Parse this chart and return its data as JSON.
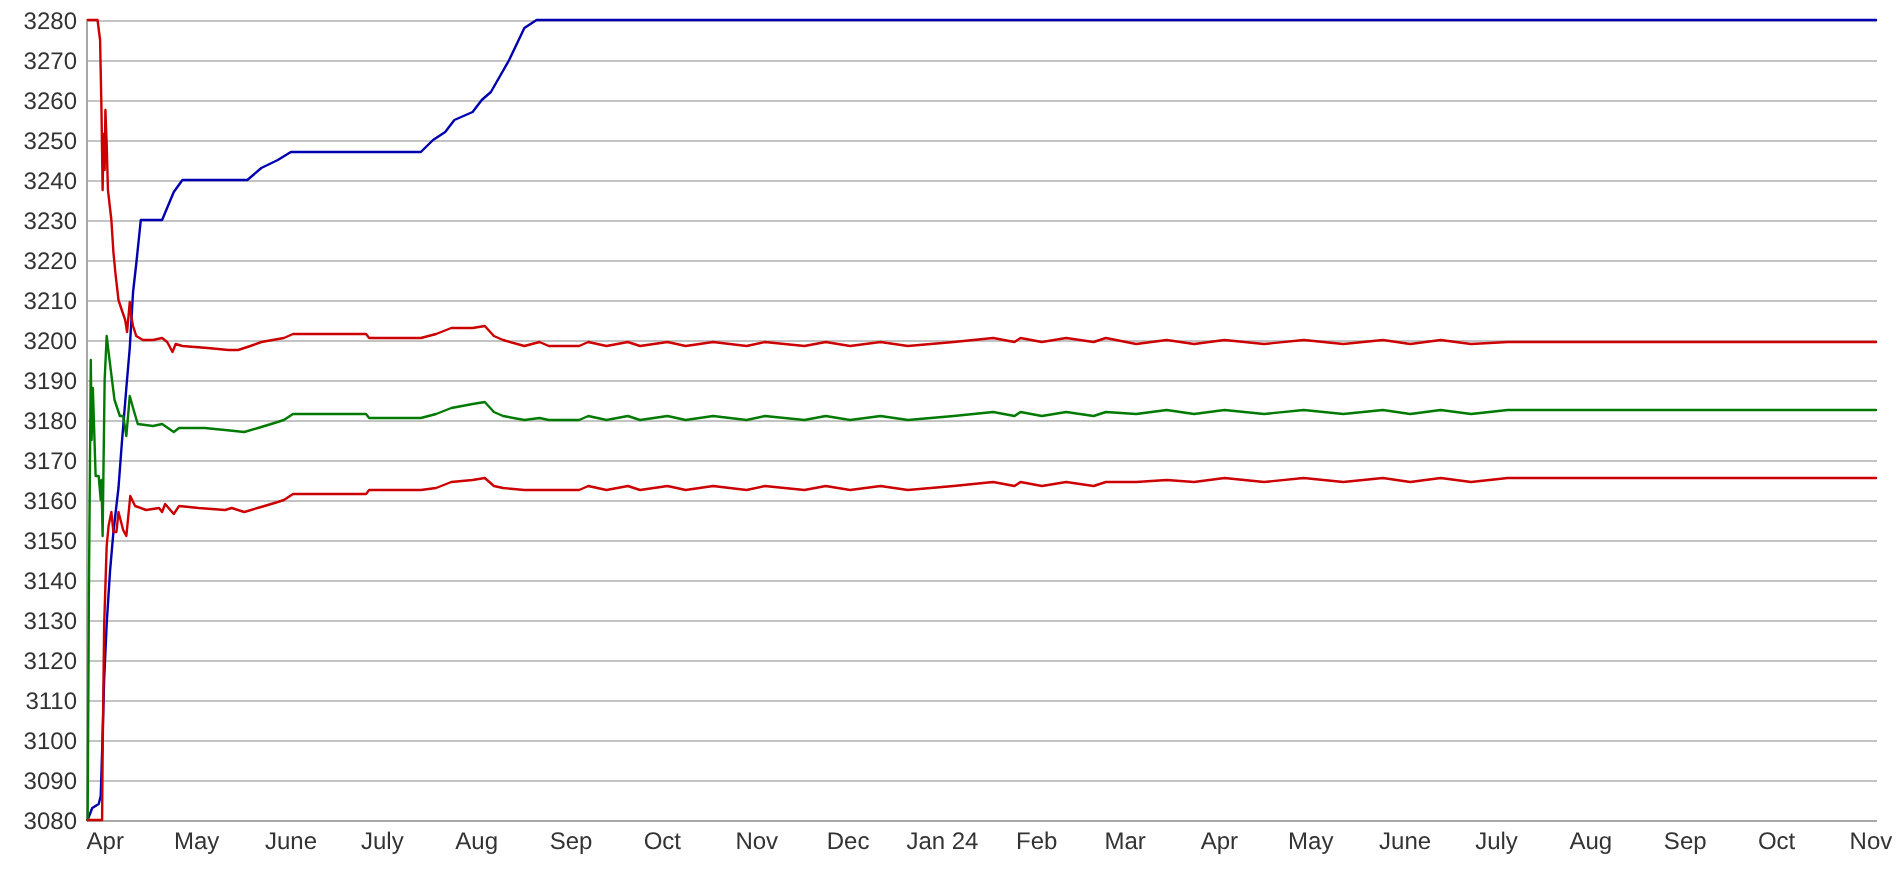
{
  "chart_data": {
    "type": "line",
    "xlim": [
      "2023-03-26",
      "2024-11-03"
    ],
    "ylim": [
      3080,
      3280
    ],
    "xticks": [
      {
        "value": "2023-04-01",
        "label": "Apr"
      },
      {
        "value": "2023-05-01",
        "label": "May"
      },
      {
        "value": "2023-06-01",
        "label": "June"
      },
      {
        "value": "2023-07-01",
        "label": "July"
      },
      {
        "value": "2023-08-01",
        "label": "Aug"
      },
      {
        "value": "2023-09-01",
        "label": "Sep"
      },
      {
        "value": "2023-10-01",
        "label": "Oct"
      },
      {
        "value": "2023-11-01",
        "label": "Nov"
      },
      {
        "value": "2023-12-01",
        "label": "Dec"
      },
      {
        "value": "2024-01-01",
        "label": "Jan 24"
      },
      {
        "value": "2024-02-01",
        "label": "Feb"
      },
      {
        "value": "2024-03-01",
        "label": "Mar"
      },
      {
        "value": "2024-04-01",
        "label": "Apr"
      },
      {
        "value": "2024-05-01",
        "label": "May"
      },
      {
        "value": "2024-06-01",
        "label": "June"
      },
      {
        "value": "2024-07-01",
        "label": "July"
      },
      {
        "value": "2024-08-01",
        "label": "Aug"
      },
      {
        "value": "2024-09-01",
        "label": "Sep"
      },
      {
        "value": "2024-10-01",
        "label": "Oct"
      },
      {
        "value": "2024-11-01",
        "label": "Nov"
      }
    ],
    "yticks": [
      3080,
      3090,
      3100,
      3110,
      3120,
      3130,
      3140,
      3150,
      3160,
      3170,
      3180,
      3190,
      3200,
      3210,
      3220,
      3230,
      3240,
      3250,
      3260,
      3270,
      3280
    ],
    "grid": "y",
    "series": [
      {
        "color": "#0000b0",
        "x": [
          "2023-03-26T13:00",
          "2023-03-28T01:00",
          "2023-03-30T04:00",
          "2023-03-30T20:00",
          "2023-03-31T07:00",
          "2023-03-31T23:00",
          "2023-04-01T19:00",
          "2023-04-02T21:00",
          "2023-04-04",
          "2023-04-05T16:00",
          "2023-04-06T18:00",
          "2023-04-08T06:00",
          "2023-04-09T09:00",
          "2023-04-10T11:00",
          "2023-04-11T12:00",
          "2023-04-13",
          "2023-04-20",
          "2023-04-23T20:00",
          "2023-04-26T16:00",
          "2023-05-18",
          "2023-05-22T14:00",
          "2023-05-28",
          "2023-06-01T07:00",
          "2023-07-14",
          "2023-07-18",
          "2023-07-22",
          "2023-07-25",
          "2023-07-31",
          "2023-08-03",
          "2023-08-06",
          "2023-08-12",
          "2023-08-17",
          "2023-08-21",
          "2024-11-03"
        ],
        "values": [
          3080,
          3083,
          3084,
          3086,
          3097,
          3115,
          3129,
          3142,
          3152,
          3163,
          3174,
          3188,
          3198,
          3212,
          3219,
          3230,
          3230,
          3237,
          3240,
          3240,
          3243,
          3245,
          3247,
          3247,
          3250,
          3252,
          3255,
          3257,
          3260,
          3262,
          3270,
          3278,
          3280,
          3280
        ]
      },
      {
        "color": "#cc0000",
        "x": [
          "2023-03-26T13:00",
          "2023-03-29T19:00",
          "2023-03-30T15:00",
          "2023-03-31T02:00",
          "2023-03-31T11:00",
          "2023-03-31T18:00",
          "2023-04-01T03:00",
          "2023-04-01T09:00",
          "2023-04-01T19:00",
          "2023-04-02T05:00",
          "2023-04-03T08:00",
          "2023-04-04",
          "2023-04-04T15:00",
          "2023-04-05T16:00",
          "2023-04-06T18:00",
          "2023-04-07T21:00",
          "2023-04-08T12:00",
          "2023-04-09T09:00",
          "2023-04-09T20:00",
          "2023-04-10T11:00",
          "2023-04-11T12:00",
          "2023-04-13T17:00",
          "2023-04-17",
          "2023-04-20",
          "2023-04-21T16:00",
          "2023-04-23T10:00",
          "2023-04-24T11:00",
          "2023-04-26T16:00",
          "2023-05-05",
          "2023-05-11T19:00",
          "2023-05-15",
          "2023-05-19",
          "2023-05-22T14:00",
          "2023-05-30",
          "2023-06-02",
          "2023-06-26",
          "2023-06-27",
          "2023-07-14",
          "2023-07-19",
          "2023-07-24",
          "2023-07-31",
          "2023-08-04",
          "2023-08-07",
          "2023-08-10",
          "2023-08-17",
          "2023-08-22",
          "2023-08-25",
          "2023-09-04",
          "2023-09-07",
          "2023-09-13",
          "2023-09-20",
          "2023-09-24",
          "2023-10-03",
          "2023-10-09",
          "2023-10-18",
          "2023-10-29",
          "2023-11-04",
          "2023-11-17",
          "2023-11-24",
          "2023-12-02",
          "2023-12-12",
          "2023-12-21",
          "2024-01-05",
          "2024-01-18",
          "2024-01-25",
          "2024-01-27",
          "2024-02-03",
          "2024-02-11",
          "2024-02-20",
          "2024-02-24",
          "2024-03-05",
          "2024-03-15",
          "2024-03-24",
          "2024-04-03",
          "2024-04-16",
          "2024-04-29",
          "2024-05-12",
          "2024-05-25",
          "2024-06-03",
          "2024-06-13",
          "2024-06-23",
          "2024-07-05",
          "2024-11-03"
        ],
        "values": [
          3280,
          3280,
          3275,
          3257.5,
          3237.5,
          3251.5,
          3242.5,
          3257.5,
          3249,
          3237.5,
          3230,
          3222,
          3217,
          3210,
          3207.5,
          3205,
          3202,
          3209.5,
          3206,
          3203.5,
          3201,
          3200,
          3200,
          3200.5,
          3199.5,
          3197,
          3199,
          3198.5,
          3198,
          3197.5,
          3197.5,
          3198.5,
          3199.5,
          3200.5,
          3201.5,
          3201.5,
          3200.5,
          3200.5,
          3201.5,
          3203,
          3203,
          3203.5,
          3201,
          3200,
          3198.5,
          3199.5,
          3198.5,
          3198.5,
          3199.5,
          3198.5,
          3199.5,
          3198.5,
          3199.5,
          3198.5,
          3199.5,
          3198.5,
          3199.5,
          3198.5,
          3199.5,
          3198.5,
          3199.5,
          3198.5,
          3199.5,
          3200.5,
          3199.5,
          3200.5,
          3199.5,
          3200.5,
          3199.5,
          3200.5,
          3199,
          3200,
          3199,
          3200,
          3199,
          3200,
          3199,
          3200,
          3199,
          3200,
          3199,
          3199.5,
          3199.5
        ]
      },
      {
        "color": "#007a00",
        "x": [
          "2023-03-26T13:00",
          "2023-03-26T23:00",
          "2023-03-27T14:00",
          "2023-03-27T20:00",
          "2023-03-28T06:00",
          "2023-03-29T04:00",
          "2023-03-30T04:00",
          "2023-03-30T20:00",
          "2023-03-31T02:00",
          "2023-03-31T11:00",
          "2023-04-01T03:00",
          "2023-04-01T19:00",
          "2023-04-02T10:00",
          "2023-04-03T13:00",
          "2023-04-04T09:00",
          "2023-04-06T03:00",
          "2023-04-07T05:00",
          "2023-04-08T06:00",
          "2023-04-09T09:00",
          "2023-04-10T11:00",
          "2023-04-12",
          "2023-04-17",
          "2023-04-20",
          "2023-04-23T20:00",
          "2023-04-25T14:00",
          "2023-05-04",
          "2023-05-10T16:00",
          "2023-05-17",
          "2023-05-21T12:00",
          "2023-05-25T20:00",
          "2023-05-30",
          "2023-06-02",
          "2023-06-26",
          "2023-06-27",
          "2023-07-14",
          "2023-07-19",
          "2023-07-24",
          "2023-07-31",
          "2023-08-04",
          "2023-08-07",
          "2023-08-10",
          "2023-08-17",
          "2023-08-22",
          "2023-08-25",
          "2023-09-04",
          "2023-09-07",
          "2023-09-13",
          "2023-09-20",
          "2023-09-24",
          "2023-10-03",
          "2023-10-09",
          "2023-10-18",
          "2023-10-29",
          "2023-11-04",
          "2023-11-17",
          "2023-11-24",
          "2023-12-02",
          "2023-12-12",
          "2023-12-21",
          "2024-01-05",
          "2024-01-18",
          "2024-01-25",
          "2024-01-27",
          "2024-02-03",
          "2024-02-11",
          "2024-02-20",
          "2024-02-24",
          "2024-03-05",
          "2024-03-15",
          "2024-03-24",
          "2024-04-03",
          "2024-04-16",
          "2024-04-29",
          "2024-05-12",
          "2024-05-25",
          "2024-06-03",
          "2024-06-13",
          "2024-06-23",
          "2024-07-05",
          "2024-11-03"
        ],
        "values": [
          3080,
          3137.5,
          3195,
          3175,
          3188,
          3166,
          3166,
          3160,
          3165,
          3151,
          3190,
          3201,
          3197,
          3190,
          3185,
          3181,
          3181,
          3176,
          3186,
          3183,
          3179,
          3178.5,
          3179,
          3177,
          3178,
          3178,
          3177.5,
          3177,
          3178,
          3179,
          3180,
          3181.5,
          3181.5,
          3180.5,
          3180.5,
          3181.5,
          3183,
          3184,
          3184.5,
          3182,
          3181,
          3180,
          3180.5,
          3180,
          3180,
          3181,
          3180,
          3181,
          3180,
          3181,
          3180,
          3181,
          3180,
          3181,
          3180,
          3181,
          3180,
          3181,
          3180,
          3181,
          3182,
          3181,
          3182,
          3181,
          3182,
          3181,
          3182,
          3181.5,
          3182.5,
          3181.5,
          3182.5,
          3181.5,
          3182.5,
          3181.5,
          3182.5,
          3181.5,
          3182.5,
          3181.5,
          3182.5,
          3182.5
        ]
      },
      {
        "color": "#cc0000",
        "x": [
          "2023-03-26T13:00",
          "2023-03-31T07:00",
          "2023-03-31T11:00",
          "2023-03-31T23:00",
          "2023-04-01T19:00",
          "2023-04-02T10:00",
          "2023-04-03T08:00",
          "2023-04-04",
          "2023-04-05",
          "2023-04-05T16:00",
          "2023-04-07T05:00",
          "2023-04-08T06:00",
          "2023-04-09T13:00",
          "2023-04-11T03:00",
          "2023-04-14T18:00",
          "2023-04-19",
          "2023-04-20",
          "2023-04-21",
          "2023-04-23T20:00",
          "2023-04-25T14:00",
          "2023-05-02",
          "2023-05-10T16:00",
          "2023-05-12T21:00",
          "2023-05-17",
          "2023-05-23T15:00",
          "2023-05-28",
          "2023-05-30",
          "2023-06-02",
          "2023-06-26",
          "2023-06-27",
          "2023-07-14",
          "2023-07-19",
          "2023-07-24",
          "2023-07-31",
          "2023-08-04",
          "2023-08-07",
          "2023-08-10",
          "2023-08-17",
          "2023-08-22",
          "2023-08-25",
          "2023-09-04",
          "2023-09-07",
          "2023-09-13",
          "2023-09-20",
          "2023-09-24",
          "2023-10-03",
          "2023-10-09",
          "2023-10-18",
          "2023-10-29",
          "2023-11-04",
          "2023-11-17",
          "2023-11-24",
          "2023-12-02",
          "2023-12-12",
          "2023-12-21",
          "2024-01-05",
          "2024-01-18",
          "2024-01-25",
          "2024-01-27",
          "2024-02-03",
          "2024-02-11",
          "2024-02-20",
          "2024-02-24",
          "2024-03-05",
          "2024-03-15",
          "2024-03-24",
          "2024-04-03",
          "2024-04-16",
          "2024-04-29",
          "2024-05-12",
          "2024-05-25",
          "2024-06-03",
          "2024-06-13",
          "2024-06-23",
          "2024-07-05",
          "2024-11-03"
        ],
        "values": [
          3080,
          3080,
          3096,
          3128.5,
          3148.5,
          3153.5,
          3157,
          3152,
          3152,
          3157,
          3152.5,
          3151,
          3161,
          3158.5,
          3157.5,
          3158,
          3157,
          3159,
          3156.5,
          3158.5,
          3158,
          3157.5,
          3158,
          3157,
          3158.5,
          3159.5,
          3160,
          3161.5,
          3161.5,
          3162.5,
          3162.5,
          3163,
          3164.5,
          3165,
          3165.5,
          3163.5,
          3163,
          3162.5,
          3162.5,
          3162.5,
          3162.5,
          3163.5,
          3162.5,
          3163.5,
          3162.5,
          3163.5,
          3162.5,
          3163.5,
          3162.5,
          3163.5,
          3162.5,
          3163.5,
          3162.5,
          3163.5,
          3162.5,
          3163.5,
          3164.5,
          3163.5,
          3164.5,
          3163.5,
          3164.5,
          3163.5,
          3164.5,
          3164.5,
          3165,
          3164.5,
          3165.5,
          3164.5,
          3165.5,
          3164.5,
          3165.5,
          3164.5,
          3165.5,
          3164.5,
          3165.5,
          3165.5
        ]
      }
    ]
  }
}
